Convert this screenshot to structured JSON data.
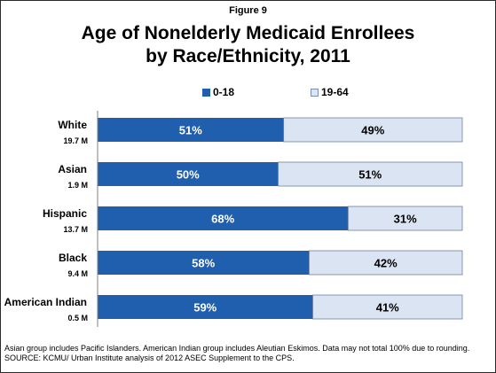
{
  "figure_label": "Figure 9",
  "title_lines": [
    "Age of Nonelderly Medicaid Enrollees",
    "by Race/Ethnicity, 2011"
  ],
  "legend": [
    {
      "label": "0-18",
      "color": "#1f5fad"
    },
    {
      "label": "19-64",
      "color": "#dbe4f2"
    }
  ],
  "chart_data": {
    "type": "bar",
    "orientation": "horizontal",
    "stacked": true,
    "percent_stacked": true,
    "title": "Age of Nonelderly Medicaid Enrollees by Race/Ethnicity, 2011",
    "categories": [
      "White",
      "Asian",
      "Hispanic",
      "Black",
      "American Indian"
    ],
    "category_sublabels": [
      "19.7 M",
      "1.9 M",
      "13.7 M",
      "9.4 M",
      "0.5 M"
    ],
    "series": [
      {
        "name": "0-18",
        "values": [
          51,
          50,
          68,
          58,
          59
        ],
        "labels": [
          "51%",
          "50%",
          "68%",
          "58%",
          "59%"
        ],
        "color": "#1f5fad"
      },
      {
        "name": "19-64",
        "values": [
          49,
          51,
          31,
          42,
          41
        ],
        "labels": [
          "49%",
          "51%",
          "31%",
          "42%",
          "41%"
        ],
        "color": "#dbe4f2"
      }
    ],
    "legend_position": "top",
    "grid": false
  },
  "footnotes": [
    "Asian group includes Pacific Islanders. American Indian group includes Aleutian Eskimos. Data may not total 100% due to rounding.",
    "SOURCE: KCMU/ Urban Institute analysis of 2012 ASEC Supplement to the CPS."
  ]
}
